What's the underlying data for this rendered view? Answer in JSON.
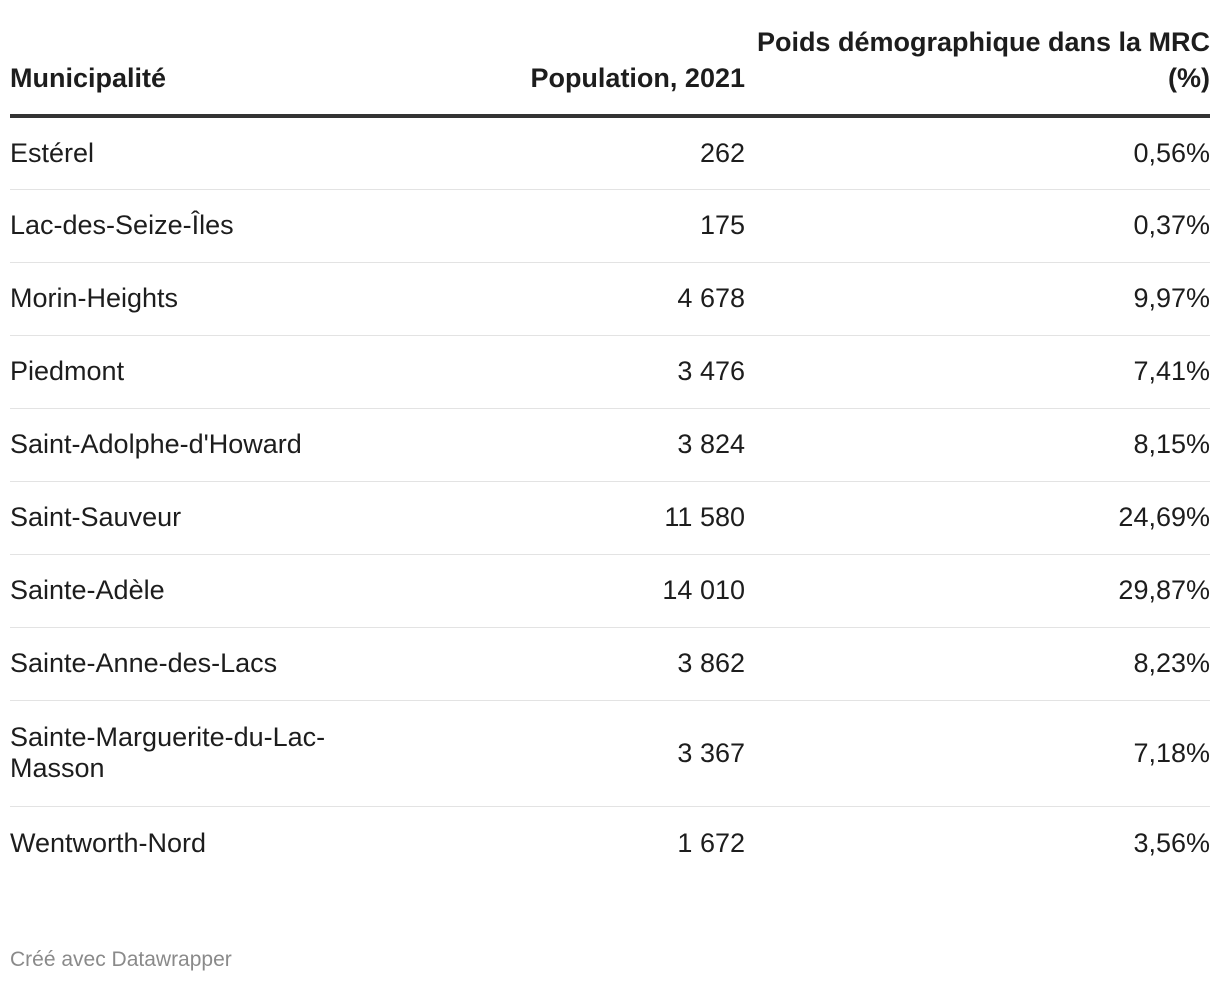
{
  "chart_data": {
    "type": "table",
    "columns": [
      "Municipalité",
      "Population, 2021",
      "Poids démographique dans la MRC (%)"
    ],
    "rows": [
      {
        "municipalite": "Estérel",
        "population": "262",
        "poids": "0,56%"
      },
      {
        "municipalite": "Lac-des-Seize-Îles",
        "population": "175",
        "poids": "0,37%"
      },
      {
        "municipalite": "Morin-Heights",
        "population": "4 678",
        "poids": "9,97%"
      },
      {
        "municipalite": "Piedmont",
        "population": "3 476",
        "poids": "7,41%"
      },
      {
        "municipalite": "Saint-Adolphe-d'Howard",
        "population": "3 824",
        "poids": "8,15%"
      },
      {
        "municipalite": "Saint-Sauveur",
        "population": "11 580",
        "poids": "24,69%"
      },
      {
        "municipalite": "Sainte-Adèle",
        "population": "14 010",
        "poids": "29,87%"
      },
      {
        "municipalite": "Sainte-Anne-des-Lacs",
        "population": "3 862",
        "poids": "8,23%"
      },
      {
        "municipalite": "Sainte-Marguerite-du-Lac-Masson",
        "population": "3 367",
        "poids": "7,18%"
      },
      {
        "municipalite": "Wentworth-Nord",
        "population": "1 672",
        "poids": "3,56%"
      }
    ]
  },
  "footer": {
    "credit": "Créé avec Datawrapper"
  }
}
